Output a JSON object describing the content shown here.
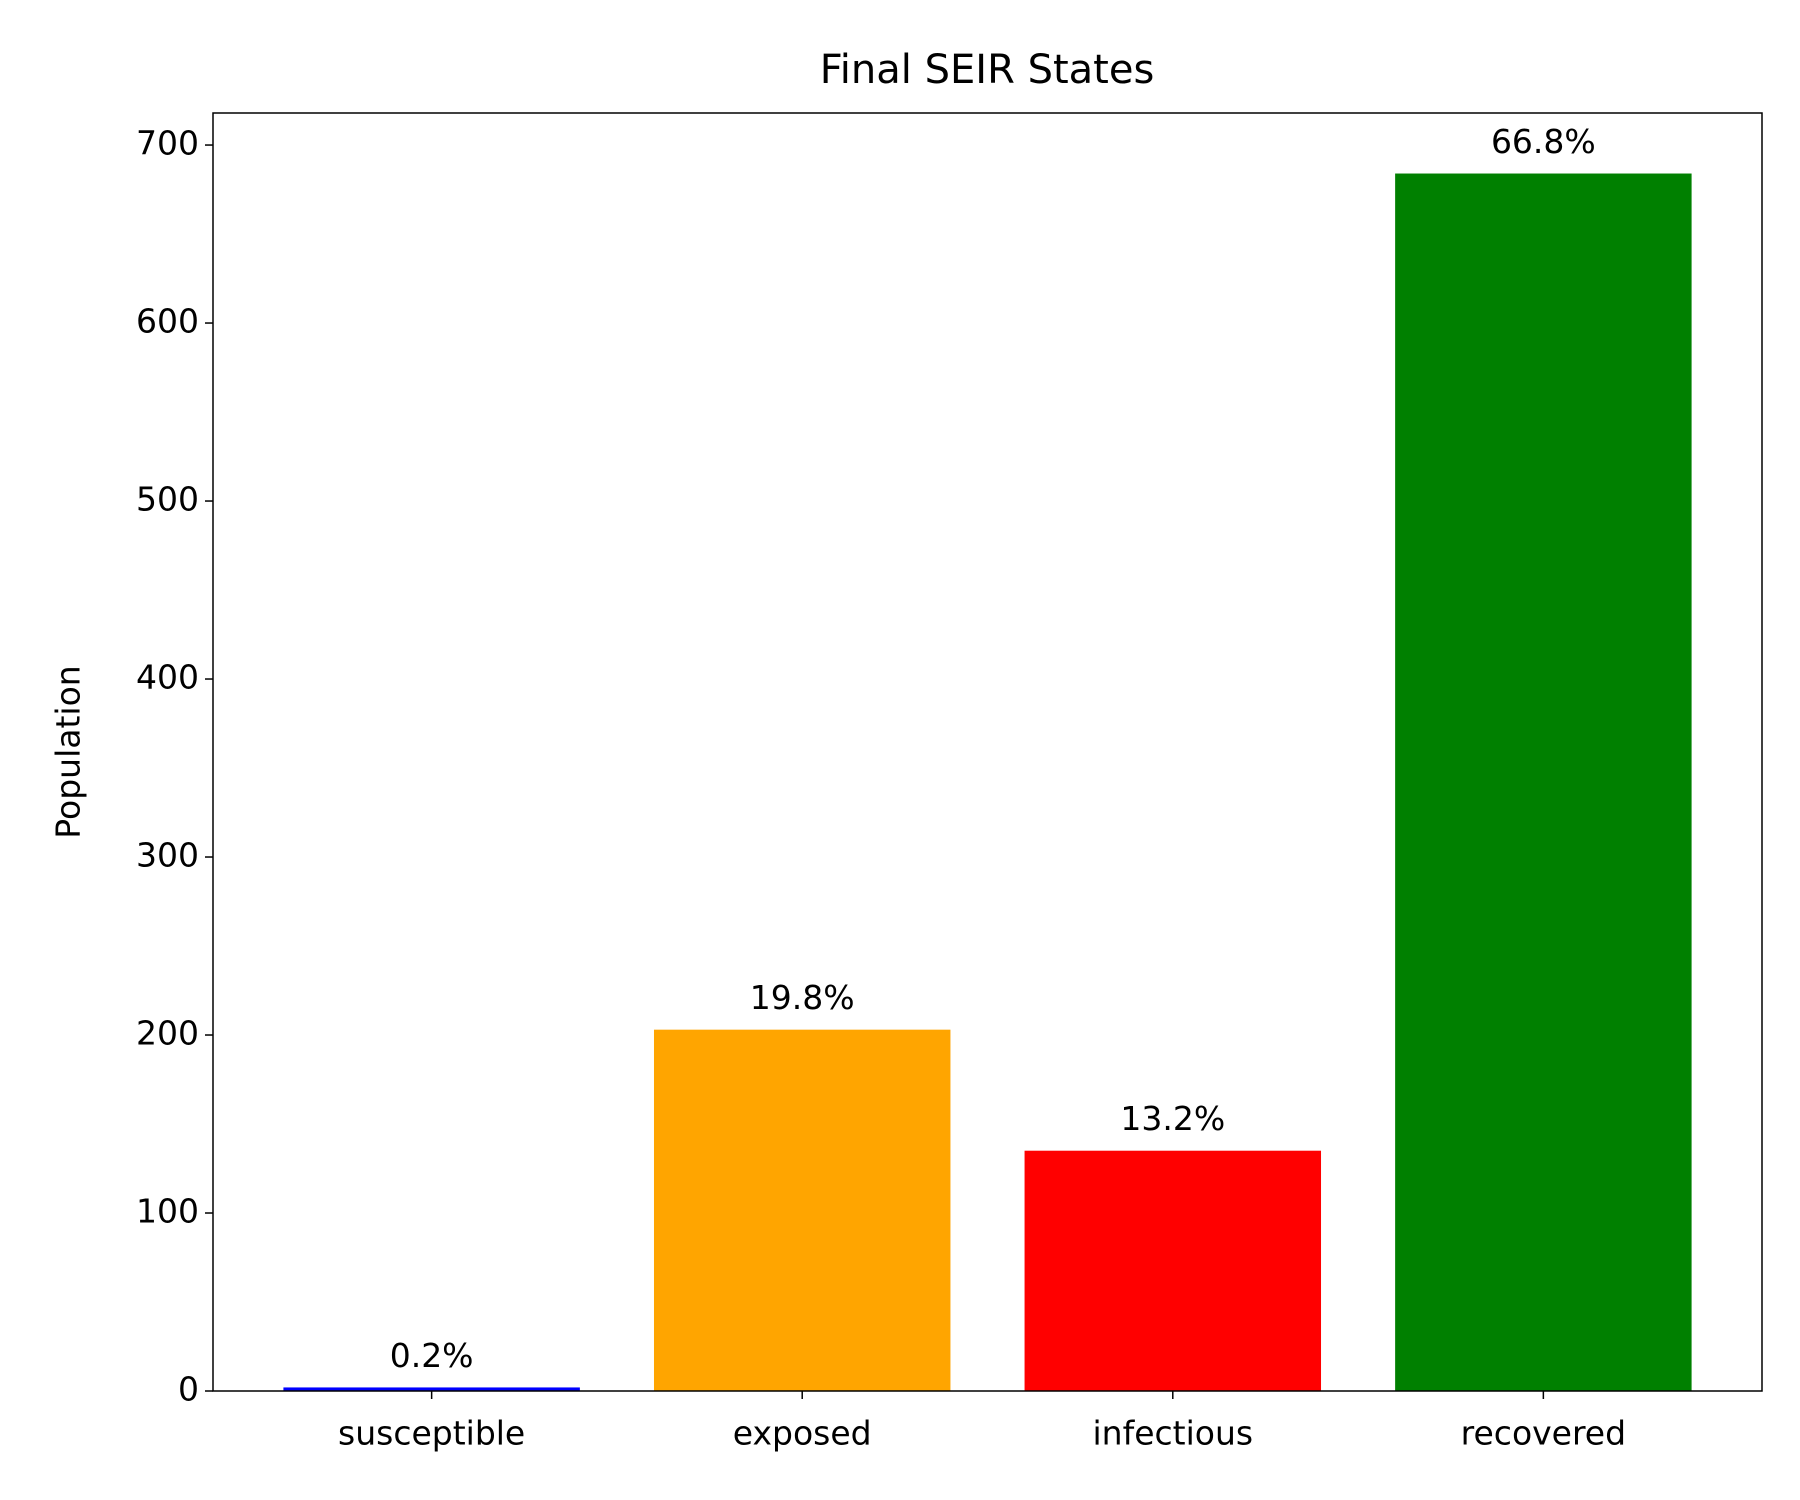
{
  "chart_data": {
    "type": "bar",
    "title": "Final SEIR States",
    "y_label": "Population",
    "categories": [
      "susceptible",
      "exposed",
      "infectious",
      "recovered"
    ],
    "values": [
      2,
      203,
      135,
      684
    ],
    "annotations": [
      "0.2%",
      "19.8%",
      "13.2%",
      "66.8%"
    ],
    "colors": [
      "#0000ff",
      "#ffa500",
      "#ff0000",
      "#008000"
    ],
    "ylim": [
      0,
      718
    ],
    "yticks": [
      0,
      100,
      200,
      300,
      400,
      500,
      600,
      700
    ],
    "grid": false
  }
}
